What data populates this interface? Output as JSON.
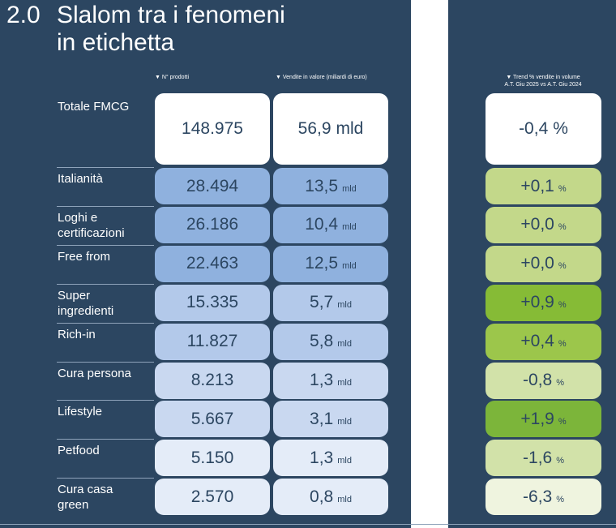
{
  "header": {
    "number": "2.0",
    "title": [
      "Slalom tra i fenomeni",
      "in etichetta"
    ]
  },
  "columns": {
    "products": "▼ N° prodotti",
    "sales": "▼ Vendite in valore (miliardi di euro)",
    "trend": [
      "▼ Trend % vendite in volume",
      "A.T. Giu 2025 vs A.T. Giu 2024"
    ]
  },
  "units": {
    "sales": "mld",
    "trend": "%"
  },
  "total": {
    "label": "Totale FMCG",
    "products": "148.975",
    "sales": "56,9",
    "trend": "-0,4"
  },
  "rows": [
    {
      "label": [
        "Italianità"
      ],
      "products": "28.494",
      "sales": "13,5",
      "trend": "+0,1"
    },
    {
      "label": [
        "Loghi e",
        "certificazioni"
      ],
      "products": "26.186",
      "sales": "10,4",
      "trend": "+0,0"
    },
    {
      "label": [
        "Free from"
      ],
      "products": "22.463",
      "sales": "12,5",
      "trend": "+0,0"
    },
    {
      "label": [
        "Super",
        "ingredienti"
      ],
      "products": "15.335",
      "sales": "5,7",
      "trend": "+0,9"
    },
    {
      "label": [
        "Rich-in"
      ],
      "products": "11.827",
      "sales": "5,8",
      "trend": "+0,4"
    },
    {
      "label": [
        "Cura persona"
      ],
      "products": "8.213",
      "sales": "1,3",
      "trend": "-0,8"
    },
    {
      "label": [
        "Lifestyle"
      ],
      "products": "5.667",
      "sales": "3,1",
      "trend": "+1,9"
    },
    {
      "label": [
        "Petfood"
      ],
      "products": "5.150",
      "sales": "1,3",
      "trend": "-1,6"
    },
    {
      "label": [
        "Cura casa",
        "green"
      ],
      "products": "2.570",
      "sales": "0,8",
      "trend": "-6,3"
    }
  ]
}
